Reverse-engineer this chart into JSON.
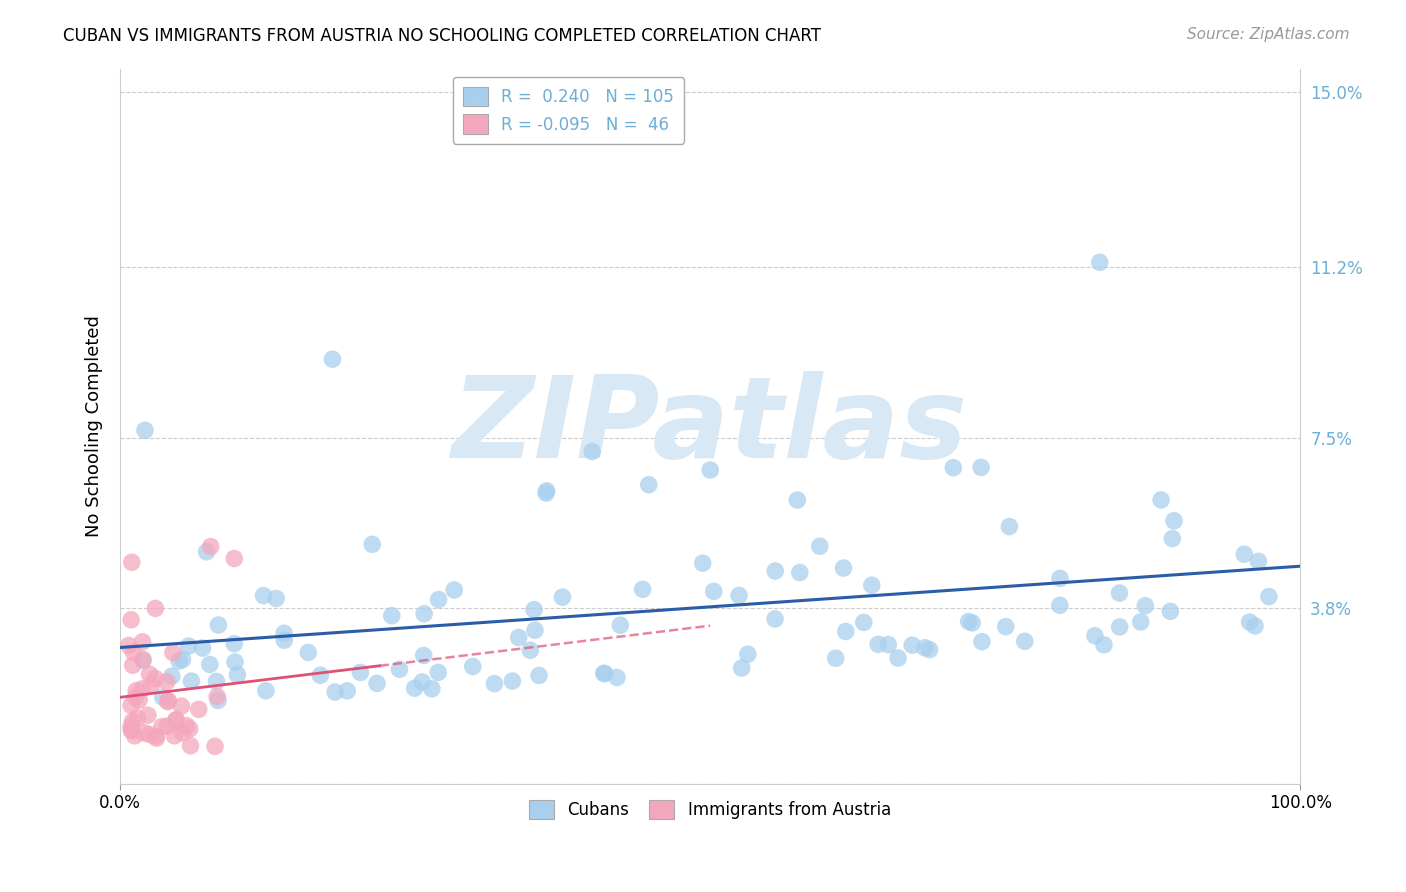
{
  "title": "CUBAN VS IMMIGRANTS FROM AUSTRIA NO SCHOOLING COMPLETED CORRELATION CHART",
  "source": "Source: ZipAtlas.com",
  "ylabel": "No Schooling Completed",
  "R_cubans": 0.24,
  "N_cubans": 105,
  "R_austria": -0.095,
  "N_austria": 46,
  "legend_cubans": "Cubans",
  "legend_austria": "Immigrants from Austria",
  "xlim": [
    0.0,
    1.0
  ],
  "ylim": [
    0.0,
    0.155
  ],
  "yticks": [
    0.0,
    0.038,
    0.075,
    0.112,
    0.15
  ],
  "ytick_labels": [
    "",
    "3.8%",
    "7.5%",
    "11.2%",
    "15.0%"
  ],
  "xtick_positions": [
    0.0,
    1.0
  ],
  "xtick_labels": [
    "0.0%",
    "100.0%"
  ],
  "color_cubans": "#a8cfee",
  "color_austria": "#f4a7bc",
  "trendline_cubans": "#2b5ca8",
  "trendline_austria": "#e05075",
  "background": "#ffffff",
  "watermark": "ZIPatlas",
  "watermark_color": "#d8e8f5",
  "grid_color": "#cccccc",
  "tick_label_color": "#6baed6",
  "title_fontsize": 12,
  "source_fontsize": 11,
  "ylabel_fontsize": 13,
  "legend_fontsize": 12,
  "tick_fontsize": 12
}
